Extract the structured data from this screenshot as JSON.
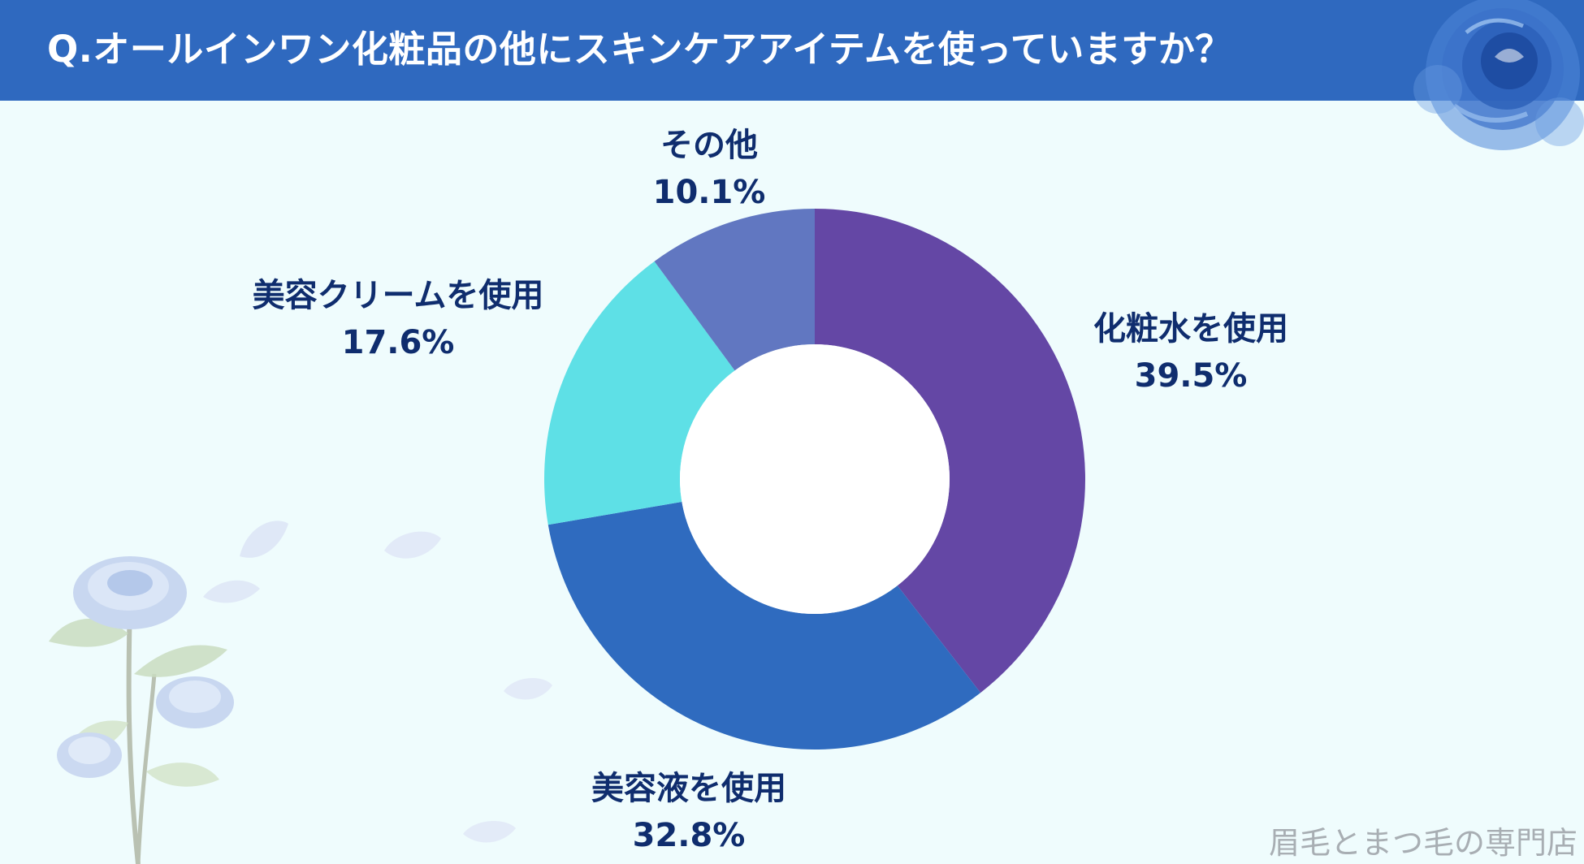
{
  "header": {
    "title": "Q.オールインワン化粧品の他にスキンケアアイテムを使っていますか？"
  },
  "chart_data": {
    "type": "pie",
    "title": "",
    "slices": [
      {
        "label": "化粧水を使用",
        "value": 39.5,
        "value_label": "39.5%",
        "color": "#6447a5"
      },
      {
        "label": "美容液を使用",
        "value": 32.8,
        "value_label": "32.8%",
        "color": "#2f6bbf"
      },
      {
        "label": "美容クリームを使用",
        "value": 17.6,
        "value_label": "17.6%",
        "color": "#5ee0e6"
      },
      {
        "label": "その他",
        "value": 10.1,
        "value_label": "10.1%",
        "color": "#6177c1"
      }
    ]
  },
  "watermark": "眉毛とまつ毛の専門店",
  "colors": {
    "header_bg": "#2f69bf",
    "background": "#effcfd",
    "label_text": "#0f2d6e"
  },
  "icons": [
    "blue-rose-icon",
    "blue-rose-stem-icon",
    "petal-icon"
  ]
}
